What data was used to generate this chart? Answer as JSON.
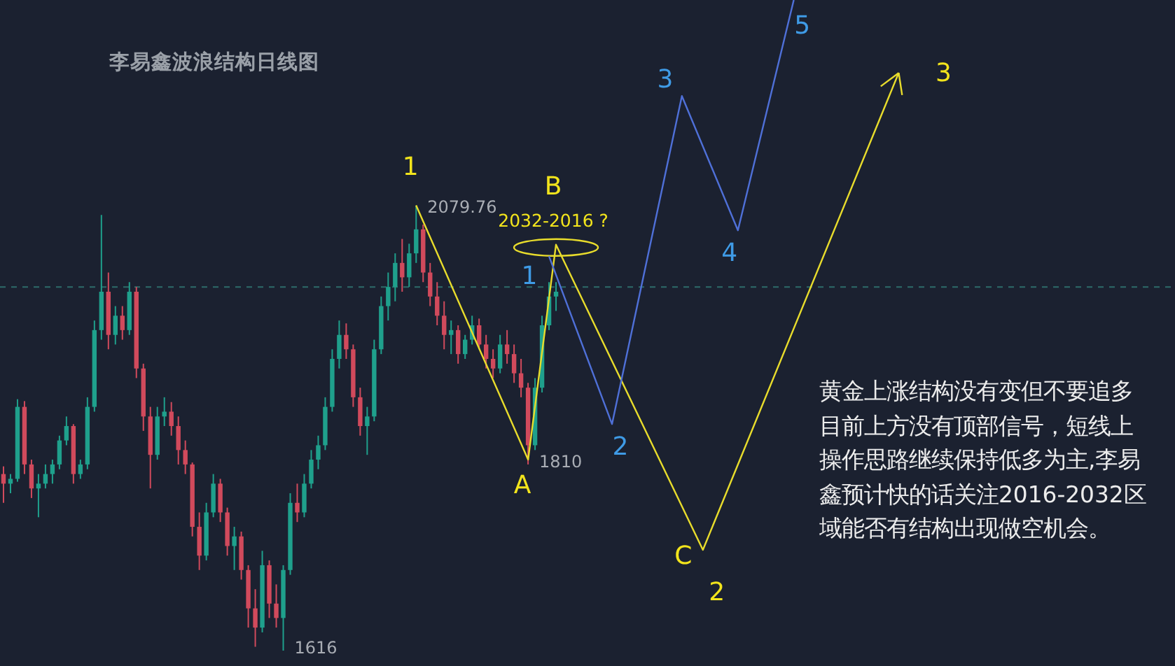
{
  "chart_data": {
    "type": "candlestick",
    "title": "李易鑫波浪结构日线图",
    "categories": [
      null,
      null,
      null,
      null,
      null,
      null,
      null,
      null,
      null,
      null,
      null,
      null,
      null,
      null,
      null,
      null,
      null,
      null,
      null,
      null,
      null,
      null,
      null,
      null,
      null,
      null,
      null,
      null,
      null,
      null,
      null,
      null,
      null,
      null,
      null,
      null,
      null,
      null,
      null,
      null,
      null,
      null,
      null,
      null,
      null,
      null,
      null,
      null,
      null,
      null,
      null,
      null,
      null,
      null,
      null,
      null,
      null,
      null,
      null,
      null,
      null,
      null,
      null,
      null,
      null,
      null,
      null,
      null,
      null,
      null,
      null,
      null,
      null,
      null,
      null,
      null,
      null,
      null,
      null,
      null,
      null,
      null,
      null,
      null,
      null,
      null,
      null,
      null,
      null,
      null,
      null,
      null,
      null,
      null,
      null,
      null,
      null,
      null,
      null,
      null,
      null,
      null,
      null,
      null,
      null,
      null,
      null,
      null,
      null,
      null,
      null,
      null,
      null,
      null,
      null,
      null,
      null,
      null,
      null,
      null,
      null,
      null,
      null,
      null,
      null,
      null,
      null,
      null,
      null,
      null,
      null,
      null,
      null,
      null,
      null,
      null,
      null,
      null,
      null,
      null,
      null,
      null,
      null,
      null,
      null,
      null,
      null,
      null,
      null,
      null,
      null,
      null,
      null,
      null,
      null,
      null,
      null,
      null,
      null,
      null,
      null,
      null,
      null,
      null,
      null,
      null,
      null,
      null
    ],
    "ohlc": [
      [
        1800,
        1808,
        1770,
        1790
      ],
      [
        1790,
        1800,
        1780,
        1795
      ],
      [
        1795,
        1878,
        1792,
        1870
      ],
      [
        1870,
        1876,
        1800,
        1810
      ],
      [
        1810,
        1815,
        1775,
        1785
      ],
      [
        1785,
        1800,
        1755,
        1790
      ],
      [
        1790,
        1810,
        1785,
        1800
      ],
      [
        1800,
        1815,
        1790,
        1810
      ],
      [
        1810,
        1840,
        1805,
        1835
      ],
      [
        1835,
        1860,
        1830,
        1850
      ],
      [
        1850,
        1852,
        1790,
        1800
      ],
      [
        1800,
        1815,
        1795,
        1810
      ],
      [
        1810,
        1880,
        1805,
        1870
      ],
      [
        1870,
        1960,
        1865,
        1950
      ],
      [
        1950,
        2070,
        1940,
        1990
      ],
      [
        1990,
        2010,
        1930,
        1945
      ],
      [
        1945,
        1975,
        1935,
        1965
      ],
      [
        1965,
        1975,
        1940,
        1950
      ],
      [
        1950,
        2000,
        1945,
        1990
      ],
      [
        1990,
        1995,
        1900,
        1910
      ],
      [
        1910,
        1915,
        1845,
        1860
      ],
      [
        1860,
        1870,
        1785,
        1820
      ],
      [
        1820,
        1870,
        1815,
        1860
      ],
      [
        1860,
        1880,
        1850,
        1865
      ],
      [
        1865,
        1875,
        1840,
        1850
      ],
      [
        1850,
        1860,
        1810,
        1825
      ],
      [
        1825,
        1835,
        1800,
        1810
      ],
      [
        1810,
        1812,
        1735,
        1745
      ],
      [
        1745,
        1760,
        1700,
        1715
      ],
      [
        1715,
        1770,
        1710,
        1760
      ],
      [
        1760,
        1800,
        1755,
        1790
      ],
      [
        1790,
        1795,
        1750,
        1760
      ],
      [
        1760,
        1765,
        1715,
        1725
      ],
      [
        1725,
        1745,
        1700,
        1735
      ],
      [
        1735,
        1740,
        1690,
        1700
      ],
      [
        1700,
        1705,
        1640,
        1660
      ],
      [
        1660,
        1680,
        1620,
        1640
      ],
      [
        1640,
        1720,
        1635,
        1705
      ],
      [
        1705,
        1710,
        1650,
        1665
      ],
      [
        1665,
        1685,
        1640,
        1650
      ],
      [
        1650,
        1705,
        1616,
        1700
      ],
      [
        1700,
        1780,
        1695,
        1770
      ],
      [
        1770,
        1790,
        1750,
        1760
      ],
      [
        1760,
        1800,
        1755,
        1790
      ],
      [
        1790,
        1825,
        1785,
        1815
      ],
      [
        1815,
        1840,
        1805,
        1830
      ],
      [
        1830,
        1880,
        1825,
        1870
      ],
      [
        1870,
        1930,
        1865,
        1920
      ],
      [
        1920,
        1960,
        1910,
        1945
      ],
      [
        1945,
        1957,
        1920,
        1930
      ],
      [
        1930,
        1935,
        1870,
        1880
      ],
      [
        1880,
        1890,
        1840,
        1850
      ],
      [
        1850,
        1870,
        1820,
        1860
      ],
      [
        1860,
        1940,
        1855,
        1930
      ],
      [
        1930,
        1985,
        1925,
        1975
      ],
      [
        1975,
        2010,
        1960,
        1995
      ],
      [
        1995,
        2030,
        1980,
        2020
      ],
      [
        2020,
        2045,
        1990,
        2005
      ],
      [
        2005,
        2040,
        1995,
        2030
      ],
      [
        2030,
        2079.76,
        2020,
        2055
      ],
      [
        2055,
        2060,
        2000,
        2010
      ],
      [
        2010,
        2020,
        1975,
        1985
      ],
      [
        1985,
        2000,
        1955,
        1965
      ],
      [
        1965,
        1980,
        1930,
        1945
      ],
      [
        1945,
        1960,
        1925,
        1950
      ],
      [
        1950,
        1955,
        1915,
        1925
      ],
      [
        1925,
        1945,
        1920,
        1940
      ],
      [
        1940,
        1965,
        1935,
        1955
      ],
      [
        1955,
        1962,
        1930,
        1935
      ],
      [
        1935,
        1945,
        1910,
        1920
      ],
      [
        1920,
        1930,
        1900,
        1910
      ],
      [
        1910,
        1945,
        1905,
        1935
      ],
      [
        1935,
        1950,
        1915,
        1925
      ],
      [
        1925,
        1935,
        1895,
        1905
      ],
      [
        1905,
        1920,
        1880,
        1890
      ],
      [
        1890,
        1895,
        1810,
        1830
      ],
      [
        1830,
        1900,
        1825,
        1890
      ],
      [
        1890,
        1965,
        1885,
        1955
      ],
      [
        1955,
        2000,
        1950,
        1985
      ],
      [
        1985,
        2000,
        1970,
        1990
      ],
      null,
      null,
      null,
      null,
      null,
      null,
      null,
      null,
      null,
      null,
      null,
      null,
      null,
      null,
      null,
      null,
      null,
      null,
      null,
      null,
      null,
      null,
      null,
      null,
      null,
      null,
      null,
      null,
      null,
      null,
      null,
      null,
      null,
      null,
      null,
      null,
      null,
      null,
      null,
      null,
      null,
      null,
      null,
      null,
      null,
      null,
      null,
      null,
      null,
      null,
      null,
      null,
      null,
      null,
      null,
      null,
      null,
      null,
      null,
      null,
      null,
      null,
      null,
      null,
      null,
      null,
      null,
      null,
      null,
      null,
      null,
      null,
      null,
      null,
      null,
      null,
      null,
      null,
      null,
      null,
      null,
      null,
      null,
      null,
      null,
      null,
      null,
      null
    ],
    "value_labels": [
      null,
      null,
      null,
      null,
      null,
      null,
      null,
      null,
      null,
      null,
      null,
      null,
      null,
      null,
      null,
      null,
      null,
      null,
      null,
      null,
      null,
      null,
      null,
      null,
      null,
      null,
      null,
      null,
      null,
      null,
      null,
      null,
      null,
      null,
      null,
      null,
      null,
      null,
      null,
      null,
      "1616",
      null,
      null,
      null,
      null,
      null,
      null,
      null,
      null,
      null,
      null,
      null,
      null,
      null,
      null,
      null,
      null,
      null,
      null,
      "2079.76",
      null,
      null,
      null,
      null,
      null,
      null,
      null,
      null,
      null,
      null,
      null,
      null,
      null,
      null,
      null,
      "1810",
      null,
      null,
      null,
      null,
      null,
      null,
      null,
      null,
      null,
      null,
      null,
      null,
      null,
      null,
      null,
      null,
      null,
      null,
      null,
      null,
      null,
      null,
      null,
      null,
      null,
      null,
      null,
      null,
      null,
      null,
      null,
      null,
      null,
      null,
      null,
      null,
      null,
      null,
      null,
      null,
      null,
      null,
      null,
      null,
      null,
      null,
      null,
      null,
      null,
      null,
      null,
      null,
      null,
      null,
      null,
      null,
      null,
      null,
      null,
      null,
      null,
      null,
      null,
      null,
      null,
      null,
      null,
      null,
      null,
      null,
      null,
      null,
      null,
      null,
      null,
      null,
      null,
      null,
      null,
      null,
      null,
      null,
      null,
      null,
      null,
      null,
      null,
      null,
      null,
      null,
      null,
      null
    ],
    "series": [
      {
        "type": "line",
        "color": "#e8dc2c",
        "values": [
          null,
          null,
          null,
          null,
          null,
          null,
          null,
          null,
          null,
          null,
          null,
          null,
          null,
          null,
          null,
          null,
          null,
          null,
          null,
          null,
          null,
          null,
          null,
          null,
          null,
          null,
          null,
          null,
          null,
          null,
          null,
          null,
          null,
          null,
          null,
          null,
          null,
          null,
          null,
          null,
          null,
          null,
          null,
          null,
          null,
          null,
          null,
          null,
          null,
          null,
          null,
          null,
          null,
          null,
          null,
          null,
          null,
          null,
          null,
          2080,
          null,
          null,
          null,
          null,
          null,
          null,
          null,
          null,
          null,
          null,
          null,
          null,
          null,
          null,
          null,
          1815,
          null,
          null,
          null,
          2039,
          null,
          null,
          null,
          null,
          null,
          null,
          null,
          null,
          null,
          null,
          null,
          null,
          null,
          null,
          null,
          null,
          null,
          null,
          null,
          null,
          1721,
          null,
          null,
          null,
          null,
          null,
          null,
          null,
          null,
          null,
          null,
          null,
          null,
          null,
          null,
          null,
          null,
          null,
          null,
          null,
          null,
          null,
          null,
          null,
          null,
          null,
          null,
          null,
          2218,
          null,
          null,
          null,
          null,
          null,
          null,
          null,
          null,
          null,
          null,
          null,
          null,
          null,
          null,
          null,
          null,
          null,
          null,
          null,
          null,
          null,
          null,
          null,
          null,
          null,
          null,
          null,
          null,
          null,
          null,
          null,
          null,
          null,
          null,
          null,
          null,
          null,
          null,
          null
        ]
      },
      {
        "type": "line",
        "color": "#4f70d8",
        "values": [
          null,
          null,
          null,
          null,
          null,
          null,
          null,
          null,
          null,
          null,
          null,
          null,
          null,
          null,
          null,
          null,
          null,
          null,
          null,
          null,
          null,
          null,
          null,
          null,
          null,
          null,
          null,
          null,
          null,
          null,
          null,
          null,
          null,
          null,
          null,
          null,
          null,
          null,
          null,
          null,
          null,
          null,
          null,
          null,
          null,
          null,
          null,
          null,
          null,
          null,
          null,
          null,
          null,
          null,
          null,
          null,
          null,
          null,
          null,
          null,
          null,
          null,
          null,
          null,
          null,
          null,
          null,
          null,
          null,
          null,
          null,
          null,
          null,
          null,
          null,
          null,
          null,
          null,
          2027,
          null,
          null,
          null,
          null,
          null,
          null,
          null,
          null,
          1852,
          null,
          null,
          null,
          null,
          null,
          null,
          null,
          null,
          null,
          2194,
          null,
          null,
          null,
          null,
          null,
          null,
          null,
          2054,
          null,
          null,
          null,
          null,
          null,
          null,
          null,
          2294,
          null,
          null,
          null,
          null,
          null,
          null,
          null,
          null,
          null,
          null,
          null,
          null,
          null,
          null,
          null,
          null,
          null,
          null,
          null,
          null,
          null,
          null,
          null,
          null,
          null,
          null,
          null,
          null,
          null,
          null,
          null,
          null,
          null,
          null,
          null,
          null,
          null,
          null,
          null,
          null,
          null,
          null,
          null,
          null,
          null,
          null,
          null,
          null,
          null,
          null,
          null,
          null,
          null,
          null
        ]
      }
    ],
    "ref_lines": [
      {
        "axis": "y",
        "value": 1995,
        "color": "#2e6b6a",
        "line_style": "dashed"
      }
    ],
    "annotations": [
      "1",
      "A",
      "B",
      "C",
      "3",
      "1",
      "2",
      "3",
      "4",
      "5",
      "2032-2016 ?",
      "2",
      "黄金上涨结构没有变但不要追多目前上方没有顶部信号，短线上操作思路继续保持低多为主,李易鑫预计快的话关注2016-2032区域能否有结构出现做空机会。"
    ]
  }
}
